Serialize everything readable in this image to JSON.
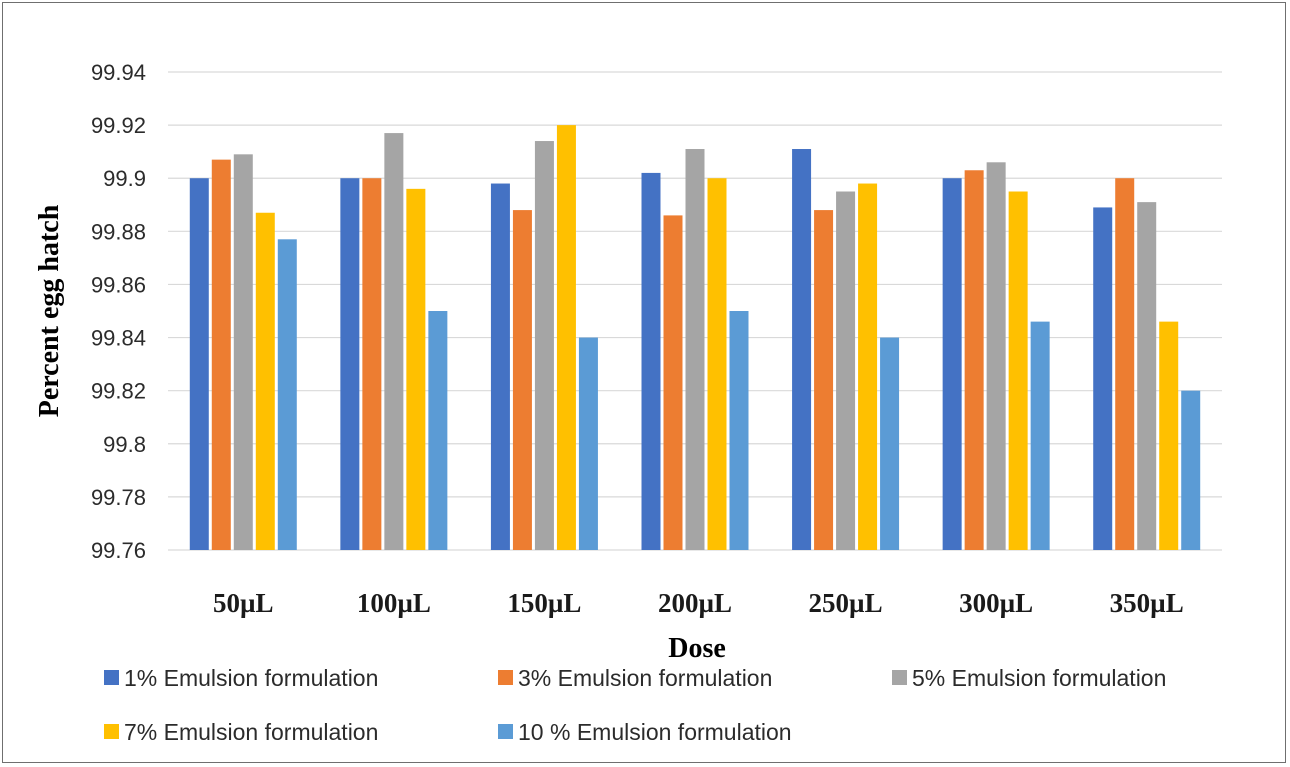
{
  "chart_data": {
    "type": "bar",
    "title": "",
    "xlabel": "Dose",
    "ylabel": "Percent egg hatch",
    "ylim": [
      99.76,
      99.94
    ],
    "yticks": [
      "99.76",
      "99.78",
      "99.8",
      "99.82",
      "99.84",
      "99.86",
      "99.88",
      "99.9",
      "99.92",
      "99.94"
    ],
    "grid": true,
    "legend_position": "bottom",
    "categories": [
      "50µL",
      "100µL",
      "150µL",
      "200µL",
      "250µL",
      "300µL",
      "350µL"
    ],
    "series": [
      {
        "name": "1% Emulsion formulation",
        "color": "#4472C4",
        "values": [
          99.9,
          99.9,
          99.898,
          99.902,
          99.911,
          99.9,
          99.889
        ]
      },
      {
        "name": "3%  Emulsion formulation",
        "color": "#ED7D31",
        "values": [
          99.907,
          99.9,
          99.888,
          99.886,
          99.888,
          99.903,
          99.9
        ]
      },
      {
        "name": "5%  Emulsion formulation",
        "color": "#A5A5A5",
        "values": [
          99.909,
          99.917,
          99.914,
          99.911,
          99.895,
          99.906,
          99.891
        ]
      },
      {
        "name": "7%  Emulsion formulation",
        "color": "#FFC000",
        "values": [
          99.887,
          99.896,
          99.92,
          99.9,
          99.898,
          99.895,
          99.846
        ]
      },
      {
        "name": "10 % Emulsion formulation",
        "color": "#5B9BD5",
        "values": [
          99.877,
          99.85,
          99.84,
          99.85,
          99.84,
          99.846,
          99.82
        ]
      }
    ]
  }
}
